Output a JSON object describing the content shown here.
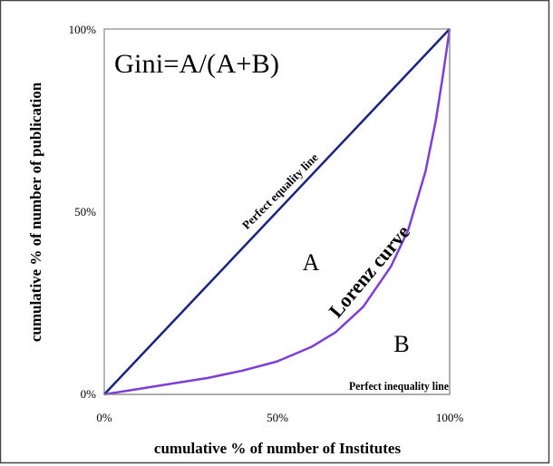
{
  "chart_data": {
    "type": "line",
    "title": "Gini=A/(A+B)",
    "xlabel": "cumulative % of number of Institutes",
    "ylabel": "cumulative % of number of publication",
    "xlim": [
      0,
      100
    ],
    "ylim": [
      0,
      100
    ],
    "x_ticks": [
      "0%",
      "50%",
      "100%"
    ],
    "y_ticks": [
      "0%",
      "50%",
      "100%"
    ],
    "grid": false,
    "series": [
      {
        "name": "Perfect equality line",
        "color": "#1a237e",
        "x": [
          0,
          100
        ],
        "y": [
          0,
          100
        ]
      },
      {
        "name": "Lorenz curve",
        "color": "#7b3fd6",
        "x": [
          0,
          10,
          20,
          30,
          40,
          50,
          60,
          67,
          75,
          83,
          88,
          93,
          96,
          98,
          100
        ],
        "y": [
          0,
          1.5,
          3,
          4.5,
          6.5,
          9,
          13,
          17,
          24,
          35,
          45,
          61,
          75,
          87,
          100
        ]
      },
      {
        "name": "Perfect inequality line",
        "color": "#888888",
        "x": [
          0,
          100,
          100
        ],
        "y": [
          0,
          0,
          100
        ]
      }
    ],
    "annotations": {
      "region_a": "A",
      "region_b": "B",
      "equality_label": "Perfect equality line",
      "lorenz_label": "Lorenz curve",
      "inequality_label": "Perfect inequality line"
    }
  }
}
